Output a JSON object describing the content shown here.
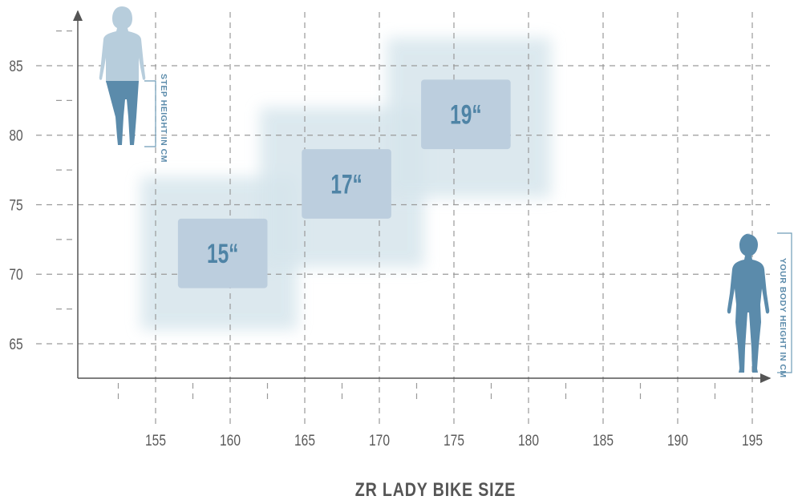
{
  "chart_data": {
    "type": "table",
    "title": "ZR LADY BIKE SIZE",
    "xlabel": "YOUR BODY HEIGHT IN CM",
    "ylabel": "STEP HEIGHT IN CM",
    "xlim": [
      148,
      198
    ],
    "ylim": [
      62,
      89
    ],
    "x_ticks": [
      155,
      160,
      165,
      170,
      175,
      180,
      185,
      190,
      195
    ],
    "y_ticks": [
      65,
      70,
      75,
      80,
      85
    ],
    "grid": true,
    "sizes": [
      {
        "label": "15“",
        "body_height_range": [
          154,
          164.5
        ],
        "step_height_range": [
          66,
          77
        ],
        "core_body_height": [
          156.5,
          162.5
        ],
        "core_step_height": [
          69,
          74
        ]
      },
      {
        "label": "17“",
        "body_height_range": [
          162,
          173
        ],
        "step_height_range": [
          70.5,
          82
        ],
        "core_body_height": [
          164.8,
          170.8
        ],
        "core_step_height": [
          74,
          79
        ]
      },
      {
        "label": "19“",
        "body_height_range": [
          170.5,
          181.5
        ],
        "step_height_range": [
          75.5,
          87
        ],
        "core_body_height": [
          172.8,
          178.8
        ],
        "core_step_height": [
          79,
          84
        ]
      }
    ],
    "colors": {
      "glow": "#d6e5ec",
      "box": "#bccede",
      "label": "#4f84a6",
      "grid": "#9a9a9a",
      "figure_dark": "#5b8bab",
      "figure_light": "#b7cddc"
    }
  }
}
